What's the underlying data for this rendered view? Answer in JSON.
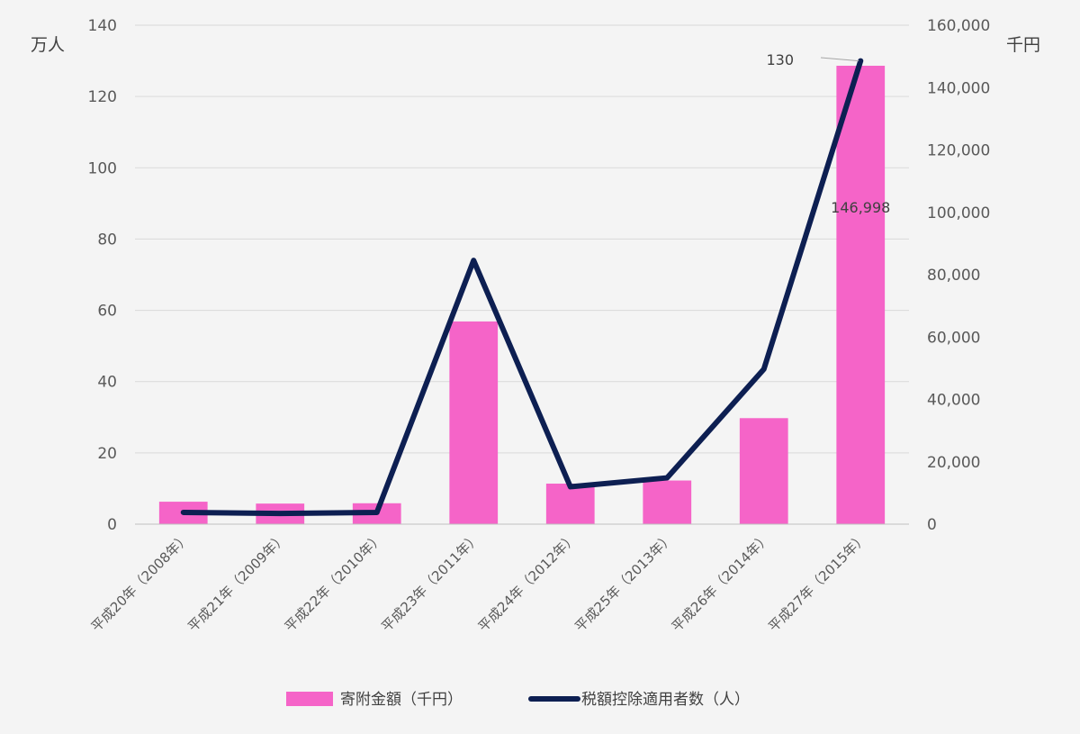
{
  "chart_data": {
    "type": "bar+line",
    "categories": [
      "平成20年（2008年）",
      "平成21年（2009年）",
      "平成22年（2010年）",
      "平成23年（2011年）",
      "平成24年（2012年）",
      "平成25年（2013年）",
      "平成26年（2014年）",
      "平成27年（2015年）"
    ],
    "series": [
      {
        "name": "寄附金額（千円）",
        "type": "bar",
        "axis": "right",
        "color": "#f564c8",
        "values": [
          7200,
          6600,
          6700,
          65000,
          13000,
          14000,
          34000,
          146998
        ]
      },
      {
        "name": "税額控除適用者数（人）",
        "type": "line",
        "axis": "left",
        "color": "#0d1f52",
        "values": [
          3.3,
          3.0,
          3.3,
          74,
          10.5,
          13,
          43.5,
          130
        ]
      }
    ],
    "left_axis": {
      "unit": "万人",
      "ylim": [
        0,
        140
      ],
      "ticks": [
        "0",
        "20",
        "40",
        "60",
        "80",
        "100",
        "120",
        "140"
      ]
    },
    "right_axis": {
      "unit": "千円",
      "ylim": [
        0,
        160000
      ],
      "ticks": [
        "0",
        "20,000",
        "40,000",
        "60,000",
        "80,000",
        "100,000",
        "120,000",
        "140,000",
        "160,000"
      ]
    },
    "annotations": [
      {
        "text": "130",
        "series": "税額控除適用者数（人）",
        "index": 7
      },
      {
        "text": "146,998",
        "series": "寄附金額（千円）",
        "index": 7
      }
    ],
    "legend_position": "bottom",
    "grid": true
  }
}
